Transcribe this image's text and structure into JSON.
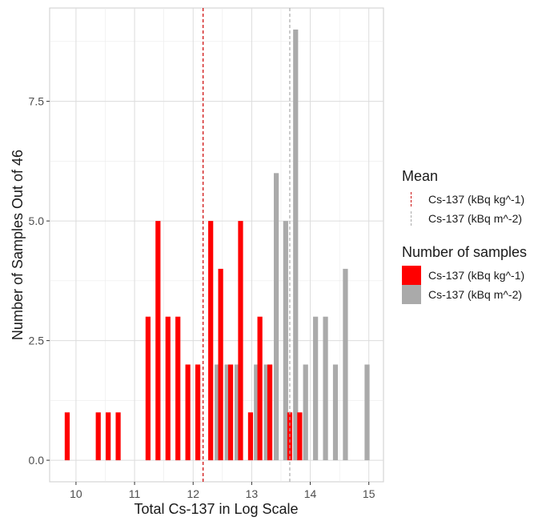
{
  "chart_data": {
    "type": "bar",
    "xlabel": "Total Cs-137 in Log Scale",
    "ylabel": "Number of Samples Out of 46",
    "xlim": [
      9.55,
      15.25
    ],
    "ylim": [
      -0.45,
      9.45
    ],
    "x_ticks": [
      "10",
      "11",
      "12",
      "13",
      "14",
      "15"
    ],
    "y_ticks": [
      "0.0",
      "2.5",
      "5.0",
      "7.5"
    ],
    "bar_width": 0.085,
    "grid": true,
    "legend_position": "right",
    "series": [
      {
        "name": "Cs-137 (kBq kg^-1)",
        "color": "#ff0000",
        "points": [
          {
            "x": 9.85,
            "y": 1
          },
          {
            "x": 10.38,
            "y": 1
          },
          {
            "x": 10.55,
            "y": 1
          },
          {
            "x": 10.72,
            "y": 1
          },
          {
            "x": 11.23,
            "y": 3
          },
          {
            "x": 11.4,
            "y": 5
          },
          {
            "x": 11.57,
            "y": 3
          },
          {
            "x": 11.74,
            "y": 3
          },
          {
            "x": 11.91,
            "y": 2
          },
          {
            "x": 12.08,
            "y": 2
          },
          {
            "x": 12.3,
            "y": 5
          },
          {
            "x": 12.47,
            "y": 4
          },
          {
            "x": 12.64,
            "y": 2
          },
          {
            "x": 12.81,
            "y": 5
          },
          {
            "x": 12.98,
            "y": 1
          },
          {
            "x": 13.14,
            "y": 3
          },
          {
            "x": 13.31,
            "y": 2
          },
          {
            "x": 13.65,
            "y": 1
          },
          {
            "x": 13.82,
            "y": 1
          }
        ]
      },
      {
        "name": "Cs-137 (kBq m^-2)",
        "color": "#aaaaaa",
        "points": [
          {
            "x": 12.41,
            "y": 2
          },
          {
            "x": 12.58,
            "y": 2
          },
          {
            "x": 12.75,
            "y": 2
          },
          {
            "x": 13.08,
            "y": 2
          },
          {
            "x": 13.25,
            "y": 2
          },
          {
            "x": 13.42,
            "y": 6
          },
          {
            "x": 13.58,
            "y": 5
          },
          {
            "x": 13.75,
            "y": 9
          },
          {
            "x": 13.92,
            "y": 2
          },
          {
            "x": 14.09,
            "y": 3
          },
          {
            "x": 14.26,
            "y": 3
          },
          {
            "x": 14.43,
            "y": 2
          },
          {
            "x": 14.6,
            "y": 4
          },
          {
            "x": 14.97,
            "y": 2
          }
        ]
      }
    ],
    "mean_lines": [
      {
        "name": "Cs-137 (kBq kg^-1)",
        "x": 12.17,
        "color": "#cc0000"
      },
      {
        "name": "Cs-137 (kBq m^-2)",
        "x": 13.65,
        "color": "#aaaaaa"
      }
    ]
  },
  "legend": {
    "mean_title": "Mean",
    "mean_items": [
      {
        "label": "Cs-137 (kBq kg^-1)",
        "color": "#cc0000"
      },
      {
        "label": "Cs-137 (kBq m^-2)",
        "color": "#aaaaaa"
      }
    ],
    "samples_title": "Number of samples",
    "samples_items": [
      {
        "label": "Cs-137 (kBq kg^-1)",
        "color": "#ff0000"
      },
      {
        "label": "Cs-137 (kBq m^-2)",
        "color": "#aaaaaa"
      }
    ]
  }
}
